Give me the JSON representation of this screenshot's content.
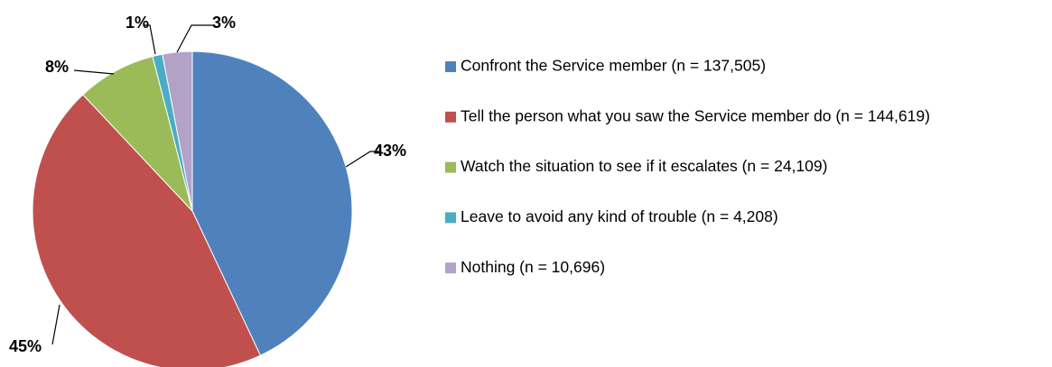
{
  "chart_data": {
    "type": "pie",
    "categories": [
      "Confront the Service member (n = 137,505)",
      "Tell the person what you saw the Service member do (n = 144,619)",
      "Watch the situation to see if it escalates (n = 24,109)",
      "Leave to avoid any kind of trouble (n = 4,208)",
      "Nothing (n = 10,696)"
    ],
    "values": [
      43,
      45,
      8,
      1,
      3
    ],
    "value_labels": [
      "43%",
      "45%",
      "8%",
      "1%",
      "3%"
    ],
    "colors": [
      "#4f81bd",
      "#c0504d",
      "#9bbb59",
      "#4bacc6",
      "#b3a2c7"
    ],
    "legend": "right"
  }
}
